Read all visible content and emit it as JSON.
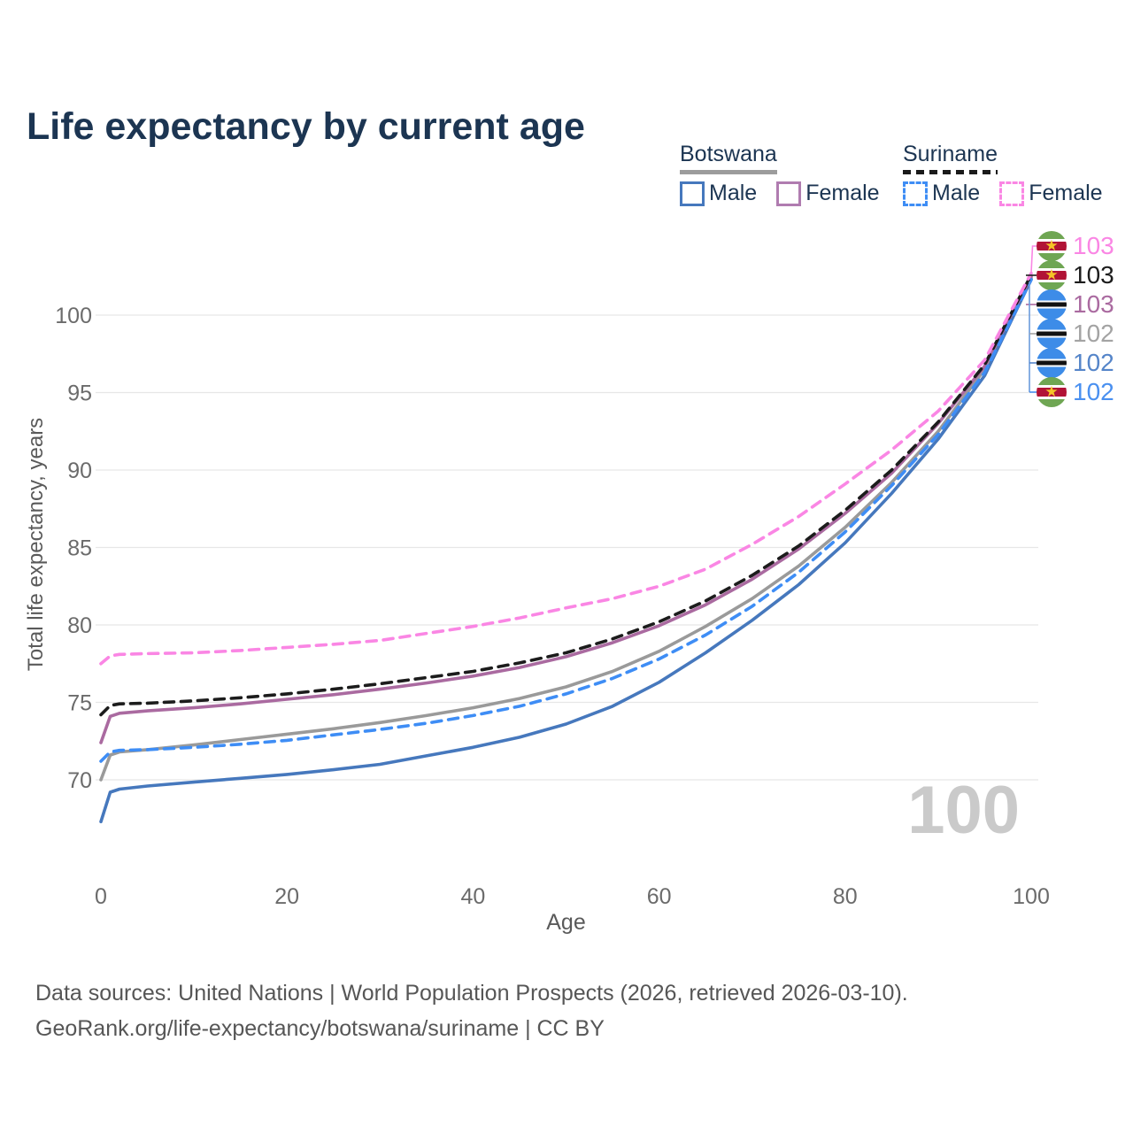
{
  "title": "Life expectancy by current age",
  "legend": {
    "groups": [
      {
        "name": "Botswana",
        "underline": "solid",
        "items": [
          {
            "label": "Male",
            "color": "#4678bd",
            "dashed": false
          },
          {
            "label": "Female",
            "color": "#b07cb0",
            "dashed": false
          }
        ]
      },
      {
        "name": "Suriname",
        "underline": "dashed",
        "items": [
          {
            "label": "Male",
            "color": "#3e8df5",
            "dashed": true
          },
          {
            "label": "Female",
            "color": "#fa86e4",
            "dashed": true
          }
        ]
      }
    ]
  },
  "watermark_age": "100",
  "icons": {
    "star": "★"
  },
  "chart_data": {
    "type": "line",
    "title": "Life expectancy by current age",
    "xlabel": "Age",
    "ylabel": "Total life expectancy, years",
    "xlim": [
      0,
      100
    ],
    "ylim": [
      66.5,
      103.5
    ],
    "xticks": [
      0,
      20,
      40,
      60,
      80,
      100
    ],
    "yticks": [
      70,
      75,
      80,
      85,
      90,
      95,
      100
    ],
    "grid": "horizontal",
    "legend_position": "top-right",
    "x": [
      0,
      1,
      2,
      5,
      10,
      15,
      20,
      25,
      30,
      35,
      40,
      45,
      50,
      55,
      60,
      65,
      70,
      75,
      80,
      85,
      90,
      95,
      100
    ],
    "series": [
      {
        "name": "Botswana Both sexes",
        "country": "botswana",
        "sex": "total",
        "line": "solid",
        "color": "#9a9a9a",
        "end_label": "102",
        "values": [
          70.0,
          71.6,
          71.8,
          71.95,
          72.25,
          72.6,
          72.95,
          73.3,
          73.7,
          74.15,
          74.65,
          75.25,
          76.0,
          77.0,
          78.3,
          79.9,
          81.7,
          83.8,
          86.3,
          89.2,
          92.5,
          96.5,
          102.4
        ]
      },
      {
        "name": "Botswana Male",
        "country": "botswana",
        "sex": "male",
        "line": "solid",
        "color": "#4678bd",
        "end_label": "102",
        "values": [
          67.3,
          69.2,
          69.4,
          69.6,
          69.85,
          70.1,
          70.35,
          70.65,
          71.0,
          71.55,
          72.1,
          72.75,
          73.6,
          74.75,
          76.3,
          78.2,
          80.3,
          82.6,
          85.3,
          88.5,
          92.0,
          96.1,
          102.3
        ]
      },
      {
        "name": "Botswana Female",
        "country": "botswana",
        "sex": "female",
        "line": "solid",
        "color": "#aa6aa0",
        "end_label": "103",
        "values": [
          72.4,
          74.1,
          74.3,
          74.45,
          74.65,
          74.9,
          75.2,
          75.5,
          75.85,
          76.25,
          76.7,
          77.25,
          77.95,
          78.85,
          79.95,
          81.3,
          82.95,
          84.9,
          87.2,
          89.8,
          93.0,
          96.7,
          102.5
        ]
      },
      {
        "name": "Suriname Male",
        "country": "suriname",
        "sex": "male",
        "line": "dashed",
        "color": "#3e8df5",
        "end_label": "102",
        "values": [
          71.2,
          71.8,
          71.9,
          71.95,
          72.1,
          72.3,
          72.55,
          72.9,
          73.25,
          73.65,
          74.15,
          74.75,
          75.55,
          76.55,
          77.8,
          79.35,
          81.2,
          83.4,
          86.0,
          89.0,
          92.3,
          96.3,
          102.3
        ]
      },
      {
        "name": "Suriname Both sexes",
        "country": "suriname",
        "sex": "total",
        "line": "dashed",
        "color": "#1c1c1c",
        "end_label": "103",
        "values": [
          74.2,
          74.8,
          74.9,
          74.95,
          75.1,
          75.3,
          75.55,
          75.85,
          76.2,
          76.6,
          77.0,
          77.55,
          78.2,
          79.1,
          80.2,
          81.55,
          83.2,
          85.1,
          87.4,
          90.0,
          93.1,
          96.8,
          102.6
        ]
      },
      {
        "name": "Suriname Female",
        "country": "suriname",
        "sex": "female",
        "line": "dashed",
        "color": "#fa86e4",
        "end_label": "103",
        "values": [
          77.5,
          78.0,
          78.1,
          78.15,
          78.2,
          78.35,
          78.55,
          78.75,
          79.0,
          79.45,
          79.9,
          80.45,
          81.1,
          81.7,
          82.5,
          83.6,
          85.2,
          87.0,
          89.1,
          91.3,
          93.8,
          97.1,
          102.7
        ]
      }
    ],
    "end_labels": [
      {
        "value": "103",
        "color": "#fa86e4",
        "flag": "suriname",
        "series": "Suriname Female"
      },
      {
        "value": "103",
        "color": "#1c1c1c",
        "flag": "suriname",
        "series": "Suriname Both sexes"
      },
      {
        "value": "103",
        "color": "#aa6aa0",
        "flag": "botswana",
        "series": "Botswana Female"
      },
      {
        "value": "102",
        "color": "#a3a3a3",
        "flag": "botswana",
        "series": "Botswana Both sexes"
      },
      {
        "value": "102",
        "color": "#5585c9",
        "flag": "botswana",
        "series": "Botswana Male"
      },
      {
        "value": "102",
        "color": "#4a90f0",
        "flag": "suriname",
        "series": "Suriname Male"
      }
    ]
  },
  "footer": {
    "line1": "Data sources: United Nations | World Population Prospects (2026, retrieved 2026-03-10).",
    "line2": "GeoRank.org/life-expectancy/botswana/suriname | CC BY"
  }
}
